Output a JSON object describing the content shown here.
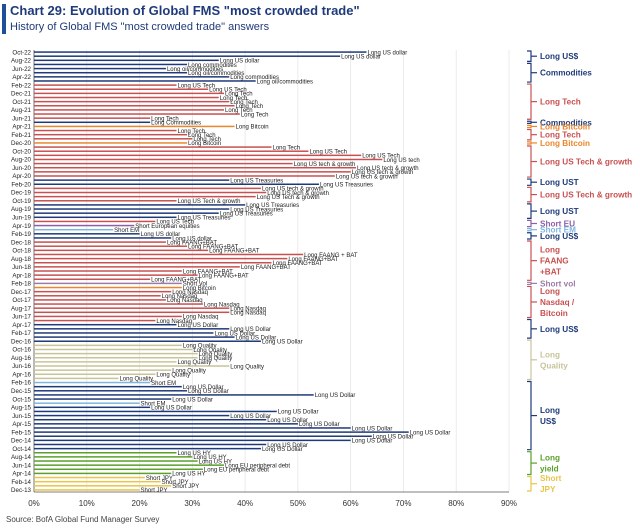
{
  "chart_data": {
    "type": "bar",
    "title": "Chart 29: Evolution of Global FMS \"most crowded trade\"",
    "subtitle": "History of Global FMS \"most crowded trade\" answers",
    "source": "Source: BofA Global Fund Manager Survey",
    "xlim": [
      0,
      90
    ],
    "xticks": [
      "0%",
      "10%",
      "20%",
      "30%",
      "40%",
      "50%",
      "60%",
      "70%",
      "80%",
      "90%"
    ],
    "colors": {
      "navy": "#1f3a7a",
      "red": "#c85050",
      "orange": "#e8872b",
      "purple": "#8c5fa8",
      "mauve": "#9e7aa8",
      "lightblue": "#7fb6e0",
      "green": "#5aa02c",
      "khaki": "#c8c49a",
      "yellow": "#e8c44a"
    },
    "months": [
      "Oct-22",
      "Sep-22",
      "Aug-22",
      "Jul-22",
      "Jun-22",
      "May-22",
      "Apr-22",
      "Mar-22",
      "Feb-22",
      "Jan-22",
      "Dec-21",
      "Nov-21",
      "Oct-21",
      "Sep-21",
      "Aug-21",
      "Jul-21",
      "Jun-21",
      "May-21",
      "Apr-21",
      "Mar-21",
      "Feb-21",
      "Jan-21",
      "Dec-20",
      "Nov-20",
      "Oct-20",
      "Sep-20",
      "Aug-20",
      "Jul-20",
      "Jun-20",
      "May-20",
      "Apr-20",
      "Mar-20",
      "Feb-20",
      "Jan-20",
      "Dec-19",
      "Nov-19",
      "Oct-19",
      "Sep-19",
      "Aug-19",
      "Jul-19",
      "Jun-19",
      "May-19",
      "Apr-19",
      "Mar-19",
      "Feb-19",
      "Jan-19",
      "Dec-18",
      "Nov-18",
      "Oct-18",
      "Sep-18",
      "Aug-18",
      "Jul-18",
      "Jun-18",
      "May-18",
      "Apr-18",
      "Mar-18",
      "Feb-18",
      "Jan-18",
      "Dec-17",
      "Nov-17",
      "Oct-17",
      "Sep-17",
      "Aug-17",
      "Jul-17",
      "Jun-17",
      "May-17",
      "Apr-17",
      "Mar-17",
      "Feb-17",
      "Jan-17",
      "Dec-16",
      "Nov-16",
      "Oct-16",
      "Sep-16",
      "Aug-16",
      "Jul-16",
      "Jun-16",
      "May-16",
      "Apr-16",
      "Mar-16",
      "Feb-16",
      "Jan-16",
      "Dec-15",
      "Nov-15",
      "Oct-15",
      "Sep-15",
      "Aug-15",
      "Jul-15",
      "Jun-15",
      "May-15",
      "Apr-15",
      "Mar-15",
      "Feb-15",
      "Jan-15",
      "Dec-14",
      "Nov-14",
      "Oct-14",
      "Sep-14",
      "Aug-14",
      "Jul-14",
      "Jun-14",
      "May-14",
      "Apr-14",
      "Mar-14",
      "Feb-14",
      "Jan-14",
      "Dec-13"
    ],
    "month_labels": [
      "Oct-22",
      "Aug-22",
      "Jun-22",
      "Apr-22",
      "Feb-22",
      "Dec-21",
      "Oct-21",
      "Aug-21",
      "Jun-21",
      "Apr-21",
      "Feb-21",
      "Dec-20",
      "Oct-20",
      "Aug-20",
      "Jun-20",
      "Apr-20",
      "Feb-20",
      "Dec-19",
      "Oct-19",
      "Aug-19",
      "Jun-19",
      "Apr-19",
      "Feb-19",
      "Dec-18",
      "Oct-18",
      "Aug-18",
      "Jun-18",
      "Apr-18",
      "Feb-18",
      "Dec-17",
      "Oct-17",
      "Aug-17",
      "Jun-17",
      "Apr-17",
      "Feb-17",
      "Dec-16",
      "Oct-16",
      "Aug-16",
      "Jun-16",
      "Apr-16",
      "Feb-16",
      "Dec-15",
      "Oct-15",
      "Aug-15",
      "Jun-15",
      "Apr-15",
      "Feb-15",
      "Dec-14",
      "Oct-14",
      "Aug-14",
      "Jun-14",
      "Apr-14",
      "Feb-14",
      "Dec-13"
    ],
    "bars": [
      {
        "v": 63,
        "t": "Long US dollar",
        "c": "navy"
      },
      {
        "v": 58,
        "t": "Long US dollar",
        "c": "navy"
      },
      {
        "v": 35,
        "t": "Long US dollar",
        "c": "navy"
      },
      {
        "v": 29,
        "t": "Long commodities",
        "c": "navy"
      },
      {
        "v": 25,
        "t": "Long oil/commodities",
        "c": "navy"
      },
      {
        "v": 29,
        "t": "Long oil/commodities",
        "c": "navy"
      },
      {
        "v": 37,
        "t": "Long commodities",
        "c": "navy"
      },
      {
        "v": 42,
        "t": "Long oil/commodities",
        "c": "navy"
      },
      {
        "v": 27,
        "t": "Long US Tech",
        "c": "red"
      },
      {
        "v": 33,
        "t": "Long US Tech",
        "c": "red"
      },
      {
        "v": 36,
        "t": "Long Tech",
        "c": "red"
      },
      {
        "v": 35,
        "t": "Long Tech",
        "c": "red"
      },
      {
        "v": 37,
        "t": "Long Tech",
        "c": "red"
      },
      {
        "v": 38,
        "t": "Long Tech",
        "c": "red"
      },
      {
        "v": 36,
        "t": "Long Tech",
        "c": "red"
      },
      {
        "v": 39,
        "t": "Long Tech",
        "c": "red"
      },
      {
        "v": 22,
        "t": "Long Tech",
        "c": "red"
      },
      {
        "v": 22,
        "t": "Long Commodities",
        "c": "navy"
      },
      {
        "v": 38,
        "t": "Long Bitcoin",
        "c": "orange"
      },
      {
        "v": 27,
        "t": "Long Tech",
        "c": "red"
      },
      {
        "v": 29,
        "t": "Long Tech",
        "c": "red"
      },
      {
        "v": 30,
        "t": "Long Tech",
        "c": "red"
      },
      {
        "v": 29,
        "t": "Long Bitcoin",
        "c": "orange"
      },
      {
        "v": 45,
        "t": "Long Tech",
        "c": "red"
      },
      {
        "v": 52,
        "t": "Long US Tech",
        "c": "red"
      },
      {
        "v": 62,
        "t": "Long US Tech",
        "c": "red"
      },
      {
        "v": 66,
        "t": "Long US tech",
        "c": "red"
      },
      {
        "v": 49,
        "t": "Long US tech & growth",
        "c": "red"
      },
      {
        "v": 61,
        "t": "Long US tech & growth",
        "c": "red"
      },
      {
        "v": 60,
        "t": "Long US tech & growth",
        "c": "red"
      },
      {
        "v": 57,
        "t": "Long US tech & growth",
        "c": "red"
      },
      {
        "v": 37,
        "t": "Long US Treasuries",
        "c": "navy"
      },
      {
        "v": 54,
        "t": "Long US Treasuries",
        "c": "navy"
      },
      {
        "v": 43,
        "t": "Long US tech & growth",
        "c": "red"
      },
      {
        "v": 44,
        "t": "Long US tech & growth",
        "c": "red"
      },
      {
        "v": 42,
        "t": "Long US Tech & growth",
        "c": "red"
      },
      {
        "v": 27,
        "t": "Long US Tech & growth",
        "c": "red"
      },
      {
        "v": 40,
        "t": "Long US Treasuries",
        "c": "navy"
      },
      {
        "v": 37,
        "t": "Long US Treasuries",
        "c": "navy"
      },
      {
        "v": 35,
        "t": "Long US Treasuries",
        "c": "navy"
      },
      {
        "v": 27,
        "t": "Long US Treasuries",
        "c": "navy"
      },
      {
        "v": 23,
        "t": "Long US Tech",
        "c": "red"
      },
      {
        "v": 19,
        "t": "Short European equities",
        "c": "purple"
      },
      {
        "v": 15,
        "t": "Short EM",
        "c": "lightblue"
      },
      {
        "v": 20,
        "t": "Long US dollar",
        "c": "navy"
      },
      {
        "v": 26,
        "t": "Long US dollar",
        "c": "navy"
      },
      {
        "v": 25,
        "t": "Long FAANG+BAT",
        "c": "red"
      },
      {
        "v": 29,
        "t": "Long FAANG+BAT",
        "c": "red"
      },
      {
        "v": 33,
        "t": "Long FAANG+BAT",
        "c": "red"
      },
      {
        "v": 51,
        "t": "Long FAANG + BAT",
        "c": "red"
      },
      {
        "v": 48,
        "t": "Long FAANG+BAT",
        "c": "red"
      },
      {
        "v": 45,
        "t": "Long FAANG+BAT",
        "c": "red"
      },
      {
        "v": 39,
        "t": "Long FAANG+BAT",
        "c": "red"
      },
      {
        "v": 28,
        "t": "Long FAANG+BAT",
        "c": "red"
      },
      {
        "v": 31,
        "t": "Long FAANG+BAT",
        "c": "red"
      },
      {
        "v": 22,
        "t": "Long FAANG+BAT",
        "c": "red"
      },
      {
        "v": 28,
        "t": "Short Vol",
        "c": "mauve"
      },
      {
        "v": 28,
        "t": "Long Bitcoin",
        "c": "orange"
      },
      {
        "v": 26,
        "t": "Long Nasdaq",
        "c": "red"
      },
      {
        "v": 24,
        "t": "Long Nasdaq",
        "c": "red"
      },
      {
        "v": 25,
        "t": "Long Nasdaq",
        "c": "red"
      },
      {
        "v": 32,
        "t": "Long Nasdaq",
        "c": "red"
      },
      {
        "v": 37,
        "t": "Long Nasdaq",
        "c": "red"
      },
      {
        "v": 37,
        "t": "Long Nasdaq",
        "c": "red"
      },
      {
        "v": 28,
        "t": "Long Nasdaq",
        "c": "red"
      },
      {
        "v": 23,
        "t": "Long Nasdaq",
        "c": "red"
      },
      {
        "v": 27,
        "t": "Long US Dollar",
        "c": "navy"
      },
      {
        "v": 37,
        "t": "Long US Dollar",
        "c": "navy"
      },
      {
        "v": 34,
        "t": "Long US Dollar",
        "c": "navy"
      },
      {
        "v": 38,
        "t": "Long US Dollar",
        "c": "navy"
      },
      {
        "v": 43,
        "t": "Long US Dollar",
        "c": "navy"
      },
      {
        "v": 28,
        "t": "Long Quality",
        "c": "khaki"
      },
      {
        "v": 30,
        "t": "Long Quality",
        "c": "khaki"
      },
      {
        "v": 31,
        "t": "Long Quality",
        "c": "khaki"
      },
      {
        "v": 31,
        "t": "Long Quality",
        "c": "khaki"
      },
      {
        "v": 27,
        "t": "Long Quality",
        "c": "khaki"
      },
      {
        "v": 37,
        "t": "Long Quality",
        "c": "khaki"
      },
      {
        "v": 26,
        "t": "Long Quality",
        "c": "khaki"
      },
      {
        "v": 23,
        "t": "Long Quality",
        "c": "khaki"
      },
      {
        "v": 16,
        "t": "Long Quality",
        "c": "khaki"
      },
      {
        "v": 22,
        "t": "Short EM",
        "c": "lightblue"
      },
      {
        "v": 28,
        "t": "Long US Dollar",
        "c": "navy"
      },
      {
        "v": 29,
        "t": "Long US Dollar",
        "c": "navy"
      },
      {
        "v": 53,
        "t": "Long US Dollar",
        "c": "navy"
      },
      {
        "v": 26,
        "t": "Long US Dollar",
        "c": "navy"
      },
      {
        "v": 20,
        "t": "Short EM",
        "c": "lightblue"
      },
      {
        "v": 22,
        "t": "Long US Dollar",
        "c": "navy"
      },
      {
        "v": 46,
        "t": "Long US Dollar",
        "c": "navy"
      },
      {
        "v": 37,
        "t": "Long US Dollar",
        "c": "navy"
      },
      {
        "v": 44,
        "t": "Long US Dollar",
        "c": "navy"
      },
      {
        "v": 50,
        "t": "Long US Dollar",
        "c": "navy"
      },
      {
        "v": 60,
        "t": "Long US Dollar",
        "c": "navy"
      },
      {
        "v": 71,
        "t": "Long US Dollar",
        "c": "navy"
      },
      {
        "v": 64,
        "t": "Long US Dollar",
        "c": "navy"
      },
      {
        "v": 60,
        "t": "Long US Dollar",
        "c": "navy"
      },
      {
        "v": 44,
        "t": "Long US Dollar",
        "c": "navy"
      },
      {
        "v": 43,
        "t": "Long US Dollar",
        "c": "navy"
      },
      {
        "v": 27,
        "t": "Long US HY",
        "c": "green"
      },
      {
        "v": 30,
        "t": "Long US HY",
        "c": "green"
      },
      {
        "v": 31,
        "t": "Long US HY",
        "c": "green"
      },
      {
        "v": 36,
        "t": "Long EU peripheral debt",
        "c": "green"
      },
      {
        "v": 32,
        "t": "Long EU peripheral debt",
        "c": "green"
      },
      {
        "v": 26,
        "t": "Long US HY",
        "c": "green"
      },
      {
        "v": 21,
        "t": "Short JPY",
        "c": "yellow"
      },
      {
        "v": 24,
        "t": "Short JPY",
        "c": "yellow"
      },
      {
        "v": 26,
        "t": "Short JPY",
        "c": "yellow"
      },
      {
        "v": 20,
        "t": "Short JPY",
        "c": "yellow"
      }
    ],
    "groups": [
      {
        "label": [
          "Long US$"
        ],
        "c": "navy",
        "from": 0,
        "to": 2
      },
      {
        "label": [
          "Commodities"
        ],
        "c": "navy",
        "from": 3,
        "to": 7
      },
      {
        "label": [
          "Long Tech"
        ],
        "c": "red",
        "from": 8,
        "to": 16
      },
      {
        "label": [
          "Commodities"
        ],
        "c": "navy",
        "from": 17,
        "to": 17
      },
      {
        "label": [
          "Long Bitcoin"
        ],
        "c": "orange",
        "from": 18,
        "to": 18
      },
      {
        "label": [
          "Long Tech"
        ],
        "c": "red",
        "from": 19,
        "to": 21
      },
      {
        "label": [
          "Long Bitcoin"
        ],
        "c": "orange",
        "from": 22,
        "to": 22
      },
      {
        "label": [
          "Long US Tech & growth"
        ],
        "c": "red",
        "from": 23,
        "to": 30
      },
      {
        "label": [
          "Long UST"
        ],
        "c": "navy",
        "from": 31,
        "to": 32
      },
      {
        "label": [
          "Long US Tech & growth"
        ],
        "c": "red",
        "from": 33,
        "to": 36
      },
      {
        "label": [
          "Long UST"
        ],
        "c": "navy",
        "from": 37,
        "to": 40
      },
      {
        "label": [
          "Short EU"
        ],
        "c": "purple",
        "from": 41,
        "to": 42
      },
      {
        "label": [
          "Short EM"
        ],
        "c": "lightblue",
        "from": 43,
        "to": 43
      },
      {
        "label": [
          "Long US$"
        ],
        "c": "navy",
        "from": 44,
        "to": 45
      },
      {
        "label": [
          "Long",
          "FAANG",
          "+BAT"
        ],
        "c": "red",
        "from": 46,
        "to": 55
      },
      {
        "label": [
          "Short vol"
        ],
        "c": "mauve",
        "from": 56,
        "to": 56
      },
      {
        "label": [
          "Long",
          "Nasdaq /",
          "Bitcoin"
        ],
        "c": "red",
        "from": 57,
        "to": 64
      },
      {
        "label": [
          "Long US$"
        ],
        "c": "navy",
        "from": 65,
        "to": 69
      },
      {
        "label": [
          "Long",
          "Quality"
        ],
        "c": "khaki",
        "from": 70,
        "to": 79
      },
      {
        "label": [
          "Long",
          "US$"
        ],
        "c": "navy",
        "from": 80,
        "to": 96
      },
      {
        "label": [
          "Long",
          "yield"
        ],
        "c": "green",
        "from": 97,
        "to": 102
      },
      {
        "label": [
          "Short",
          "JPY"
        ],
        "c": "yellow",
        "from": 103,
        "to": 106
      }
    ]
  }
}
